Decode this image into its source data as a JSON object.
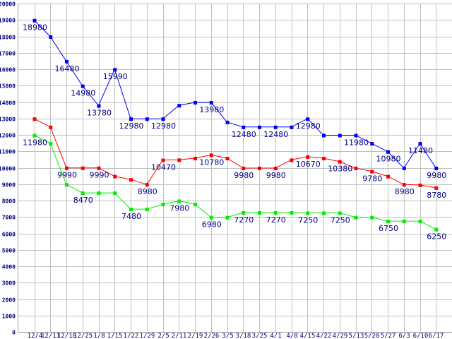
{
  "chart_data": {
    "type": "line",
    "title": "",
    "xlabel": "",
    "ylabel": "",
    "ylim": [
      0,
      20000
    ],
    "ystep": 1000,
    "grid": true,
    "categories": [
      "12/4",
      "12/11",
      "12/18",
      "12/25",
      "1/8",
      "1/15",
      "1/22",
      "1/29",
      "2/5",
      "2/11",
      "2/19",
      "2/26",
      "3/5",
      "3/18",
      "3/25",
      "4/1",
      "4/8",
      "4/15",
      "4/22",
      "4/29",
      "5/13",
      "5/20",
      "5/27",
      "6/3",
      "6/10",
      "6/17"
    ],
    "series": [
      {
        "name": "blue",
        "color": "#0000ff",
        "values": [
          18980,
          17980,
          16480,
          14980,
          13780,
          15990,
          12980,
          12980,
          12980,
          13800,
          13980,
          13980,
          12780,
          12480,
          12480,
          12480,
          12480,
          12980,
          11980,
          11980,
          11980,
          11480,
          10980,
          9980,
          11480,
          9980
        ],
        "labeled": [
          0,
          2,
          3,
          4,
          5,
          6,
          8,
          11,
          13,
          15,
          17,
          20,
          22,
          24,
          25
        ]
      },
      {
        "name": "red",
        "color": "#ff0000",
        "values": [
          12980,
          12480,
          9990,
          9990,
          9990,
          9480,
          9280,
          8980,
          10470,
          10480,
          10580,
          10780,
          10580,
          9980,
          9980,
          9980,
          10480,
          10670,
          10580,
          10380,
          9980,
          9780,
          9480,
          8980,
          8950,
          8780
        ],
        "labeled": [
          2,
          4,
          7,
          8,
          11,
          13,
          15,
          17,
          19,
          21,
          23,
          25
        ]
      },
      {
        "name": "green",
        "color": "#00ee00",
        "values": [
          11980,
          11480,
          8980,
          8470,
          8470,
          8470,
          7480,
          7480,
          7780,
          7980,
          7780,
          6980,
          6980,
          7270,
          7270,
          7270,
          7270,
          7250,
          7250,
          7250,
          6980,
          6980,
          6750,
          6750,
          6750,
          6250
        ],
        "labeled": [
          0,
          3,
          6,
          9,
          11,
          13,
          15,
          17,
          19,
          22,
          25
        ]
      }
    ]
  }
}
